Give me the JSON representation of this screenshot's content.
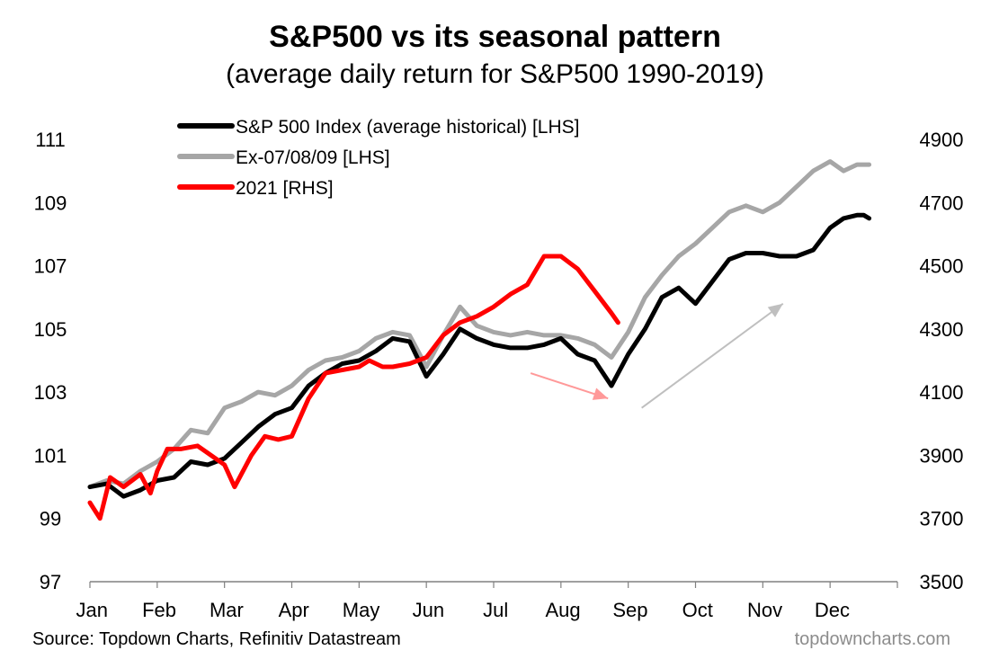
{
  "chart_data": {
    "type": "line",
    "title": "S&P500 vs its seasonal pattern",
    "subtitle": "(average daily return for S&P500 1990-2019)",
    "x_categories": [
      "Jan",
      "Feb",
      "Mar",
      "Apr",
      "May",
      "Jun",
      "Jul",
      "Aug",
      "Sep",
      "Oct",
      "Nov",
      "Dec"
    ],
    "y_left": {
      "ticks": [
        97,
        99,
        101,
        103,
        105,
        107,
        109,
        111
      ],
      "range": [
        97,
        111
      ]
    },
    "y_right": {
      "ticks": [
        3500,
        3700,
        3900,
        4100,
        4300,
        4500,
        4700,
        4900
      ],
      "range": [
        3500,
        4900
      ]
    },
    "grid": false,
    "legend_position": "top-left",
    "series": [
      {
        "name": "S&P 500 Index (average historical) [LHS]",
        "axis": "left",
        "color": "#000000",
        "x": [
          0.0,
          0.25,
          0.5,
          0.75,
          1.0,
          1.25,
          1.5,
          1.75,
          2.0,
          2.25,
          2.5,
          2.75,
          3.0,
          3.25,
          3.5,
          3.75,
          4.0,
          4.25,
          4.5,
          4.75,
          5.0,
          5.25,
          5.5,
          5.75,
          6.0,
          6.25,
          6.5,
          6.75,
          7.0,
          7.25,
          7.5,
          7.75,
          8.0,
          8.25,
          8.5,
          8.75,
          9.0,
          9.25,
          9.5,
          9.75,
          10.0,
          10.25,
          10.5,
          10.75,
          11.0,
          11.2,
          11.4,
          11.5,
          11.58
        ],
        "values": [
          100.0,
          100.1,
          99.7,
          99.9,
          100.2,
          100.3,
          100.8,
          100.7,
          100.9,
          101.4,
          101.9,
          102.3,
          102.5,
          103.2,
          103.6,
          103.9,
          104.0,
          104.3,
          104.7,
          104.6,
          103.5,
          104.2,
          105.0,
          104.7,
          104.5,
          104.4,
          104.4,
          104.5,
          104.7,
          104.2,
          104.0,
          103.2,
          104.2,
          105.0,
          106.0,
          106.3,
          105.8,
          106.5,
          107.2,
          107.4,
          107.4,
          107.3,
          107.3,
          107.5,
          108.2,
          108.5,
          108.6,
          108.6,
          108.5
        ]
      },
      {
        "name": "Ex-07/08/09 [LHS]",
        "axis": "left",
        "color": "#a6a6a6",
        "x": [
          0.0,
          0.25,
          0.5,
          0.75,
          1.0,
          1.25,
          1.5,
          1.75,
          2.0,
          2.25,
          2.5,
          2.75,
          3.0,
          3.25,
          3.5,
          3.75,
          4.0,
          4.25,
          4.5,
          4.75,
          5.0,
          5.25,
          5.5,
          5.75,
          6.0,
          6.25,
          6.5,
          6.75,
          7.0,
          7.25,
          7.5,
          7.75,
          8.0,
          8.25,
          8.5,
          8.75,
          9.0,
          9.25,
          9.5,
          9.75,
          10.0,
          10.25,
          10.5,
          10.75,
          11.0,
          11.2,
          11.4,
          11.5,
          11.58
        ],
        "values": [
          100.0,
          100.2,
          100.1,
          100.5,
          100.8,
          101.2,
          101.8,
          101.7,
          102.5,
          102.7,
          103.0,
          102.9,
          103.2,
          103.7,
          104.0,
          104.1,
          104.3,
          104.7,
          104.9,
          104.8,
          103.8,
          104.8,
          105.7,
          105.1,
          104.9,
          104.8,
          104.9,
          104.8,
          104.8,
          104.7,
          104.5,
          104.1,
          104.9,
          106.0,
          106.7,
          107.3,
          107.7,
          108.2,
          108.7,
          108.9,
          108.7,
          109.0,
          109.5,
          110.0,
          110.3,
          110.0,
          110.2,
          110.2,
          110.2
        ]
      },
      {
        "name": "2021 [RHS]",
        "axis": "right",
        "color": "#ff0000",
        "x": [
          0.0,
          0.15,
          0.3,
          0.5,
          0.75,
          0.9,
          1.0,
          1.15,
          1.35,
          1.6,
          1.8,
          2.0,
          2.15,
          2.4,
          2.6,
          2.8,
          3.0,
          3.25,
          3.5,
          3.75,
          4.0,
          4.15,
          4.35,
          4.5,
          4.75,
          5.0,
          5.25,
          5.5,
          5.75,
          6.0,
          6.25,
          6.5,
          6.75,
          7.0,
          7.25,
          7.5,
          7.75,
          7.85
        ],
        "values": [
          3750,
          3700,
          3830,
          3800,
          3840,
          3780,
          3850,
          3920,
          3920,
          3930,
          3900,
          3870,
          3800,
          3900,
          3960,
          3950,
          3960,
          4080,
          4160,
          4170,
          4180,
          4200,
          4180,
          4180,
          4190,
          4210,
          4280,
          4320,
          4340,
          4370,
          4410,
          4440,
          4530,
          4530,
          4490,
          4420,
          4350,
          4320
        ]
      }
    ],
    "annotations": [
      {
        "kind": "arrow",
        "color": "#ff9999",
        "from": {
          "x": 6.55,
          "y_left": 103.6
        },
        "to": {
          "x": 7.7,
          "y_left": 102.8
        }
      },
      {
        "kind": "arrow",
        "color": "#bfbfbf",
        "from": {
          "x": 8.2,
          "y_left": 102.5
        },
        "to": {
          "x": 10.3,
          "y_left": 105.8
        }
      }
    ]
  },
  "footer": {
    "source": "Source: Topdown Charts, Refinitiv Datastream",
    "watermark": "topdowncharts.com"
  }
}
